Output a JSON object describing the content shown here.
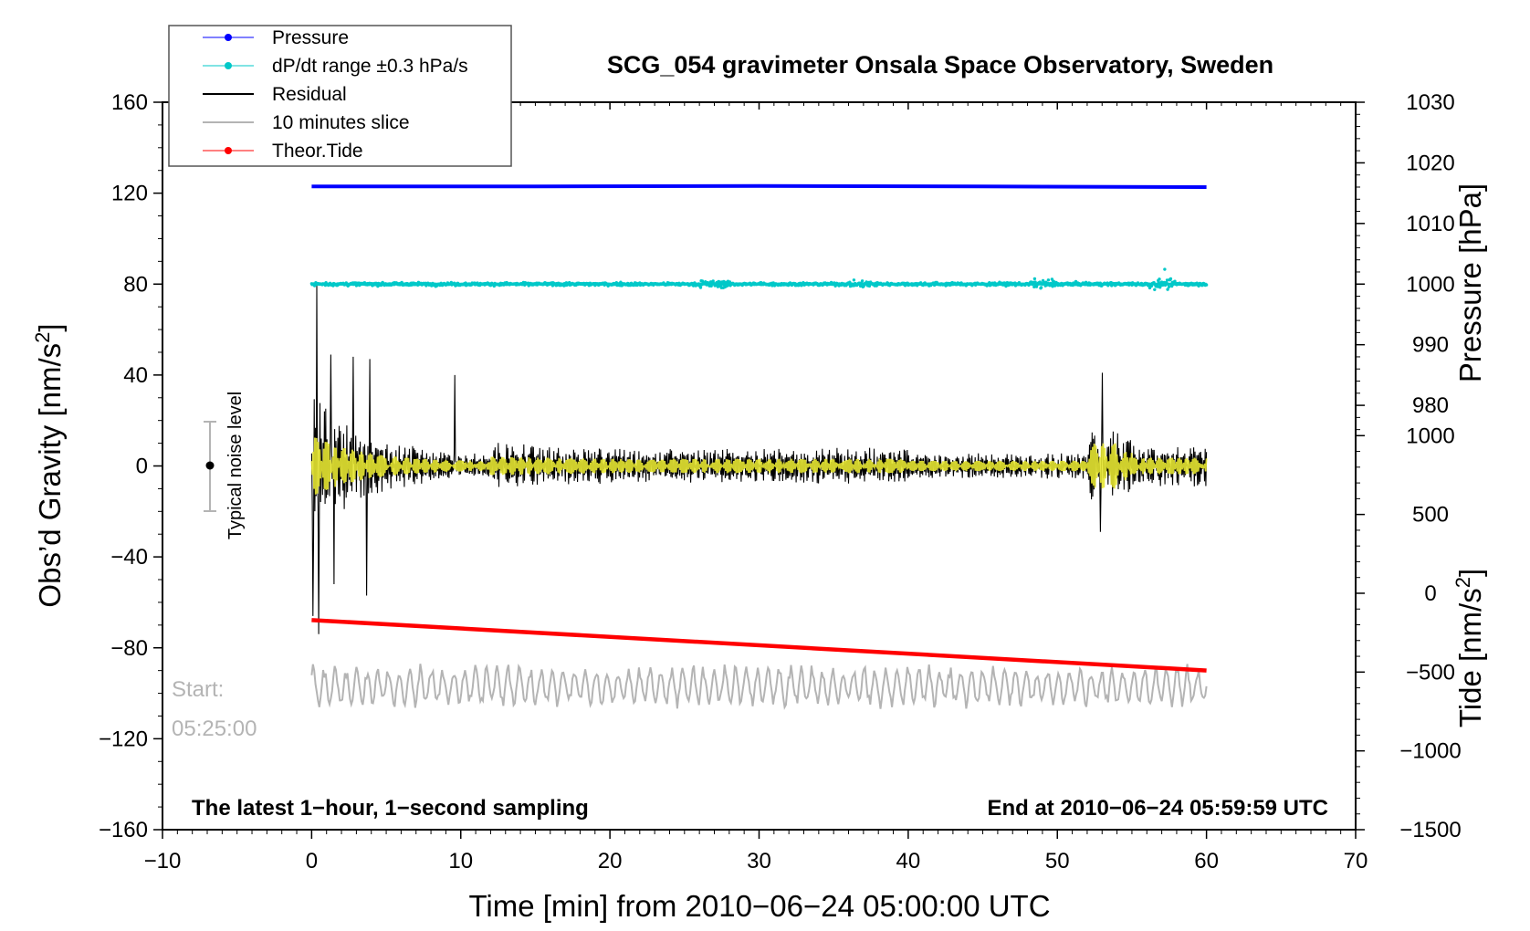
{
  "chart_data": {
    "type": "line",
    "title": "SCG_054 gravimeter Onsala Space Observatory, Sweden",
    "xlabel": "Time [min] from 2010−06−24 05:00:00 UTC",
    "x_ticks": [
      "−10",
      "0",
      "10",
      "20",
      "30",
      "40",
      "50",
      "60",
      "70"
    ],
    "xlim": [
      -10,
      70
    ],
    "left_axis": {
      "label": "Obs’d Gravity [nm/s",
      "label_sup": "2",
      "label_end": "]",
      "ylim": [
        -160,
        160
      ],
      "ticks": [
        "160",
        "120",
        "80",
        "40",
        "0",
        "−40",
        "−80",
        "−120",
        "−160"
      ]
    },
    "right_pressure_axis": {
      "label": "Pressure [hPa]",
      "ylim": [
        975,
        1030
      ],
      "ticks": [
        "1030",
        "1020",
        "1010",
        "1000",
        "990",
        "980"
      ]
    },
    "right_tide_axis": {
      "label": "Tide [nm/s",
      "label_sup": "2",
      "label_end": "]",
      "ylim": [
        -1500,
        1000
      ],
      "ticks": [
        "1000",
        "500",
        "0",
        "−500",
        "−1000",
        "−1500"
      ]
    },
    "legend": [
      {
        "label": "Pressure",
        "color": "#0000ff",
        "marker": "dot"
      },
      {
        "label": "dP/dt range ±0.3 hPa/s",
        "color": "#00c8c8",
        "marker": "dot"
      },
      {
        "label": "Residual",
        "color": "#000000",
        "marker": "none"
      },
      {
        "label": "10 minutes slice",
        "color": "#b4b4b4",
        "marker": "none"
      },
      {
        "label": "Theor.Tide",
        "color": "#ff0000",
        "marker": "dot"
      }
    ],
    "series": [
      {
        "name": "Pressure",
        "axis": "pressure",
        "color": "#0000ff",
        "x_range": [
          0,
          60
        ],
        "values": [
          1016.1,
          1016.1,
          1016.2,
          1016.1,
          1016.0
        ]
      },
      {
        "name": "dP/dt range ±0.3 hPa/s",
        "axis": "left",
        "color": "#00c8c8",
        "x_range": [
          0,
          60
        ],
        "center": 80
      },
      {
        "name": "Residual",
        "axis": "left",
        "color": "#000000",
        "x_range": [
          0,
          60
        ],
        "center": 0,
        "peak_min": -74,
        "peak_max": 80
      },
      {
        "name": "Residual (filtered)",
        "axis": "left",
        "color": "#e6e632",
        "x_range": [
          0,
          60
        ],
        "center": 0
      },
      {
        "name": "10 minutes slice",
        "axis": "left",
        "color": "#b4b4b4",
        "x_range": [
          0,
          60
        ],
        "center": -97
      },
      {
        "name": "Theor.Tide",
        "axis": "tide",
        "color": "#ff0000",
        "x": [
          0,
          60
        ],
        "values": [
          -170,
          -490
        ]
      }
    ],
    "noise_level": {
      "label": "Typical noise level",
      "x": -7,
      "center": 0,
      "range": [
        -20,
        20
      ]
    },
    "start_label": [
      "Start:",
      "05:25:00"
    ],
    "bottom_left_note": "The latest 1−hour, 1−second sampling",
    "bottom_right_note": "End at 2010−06−24 05:59:59 UTC"
  }
}
